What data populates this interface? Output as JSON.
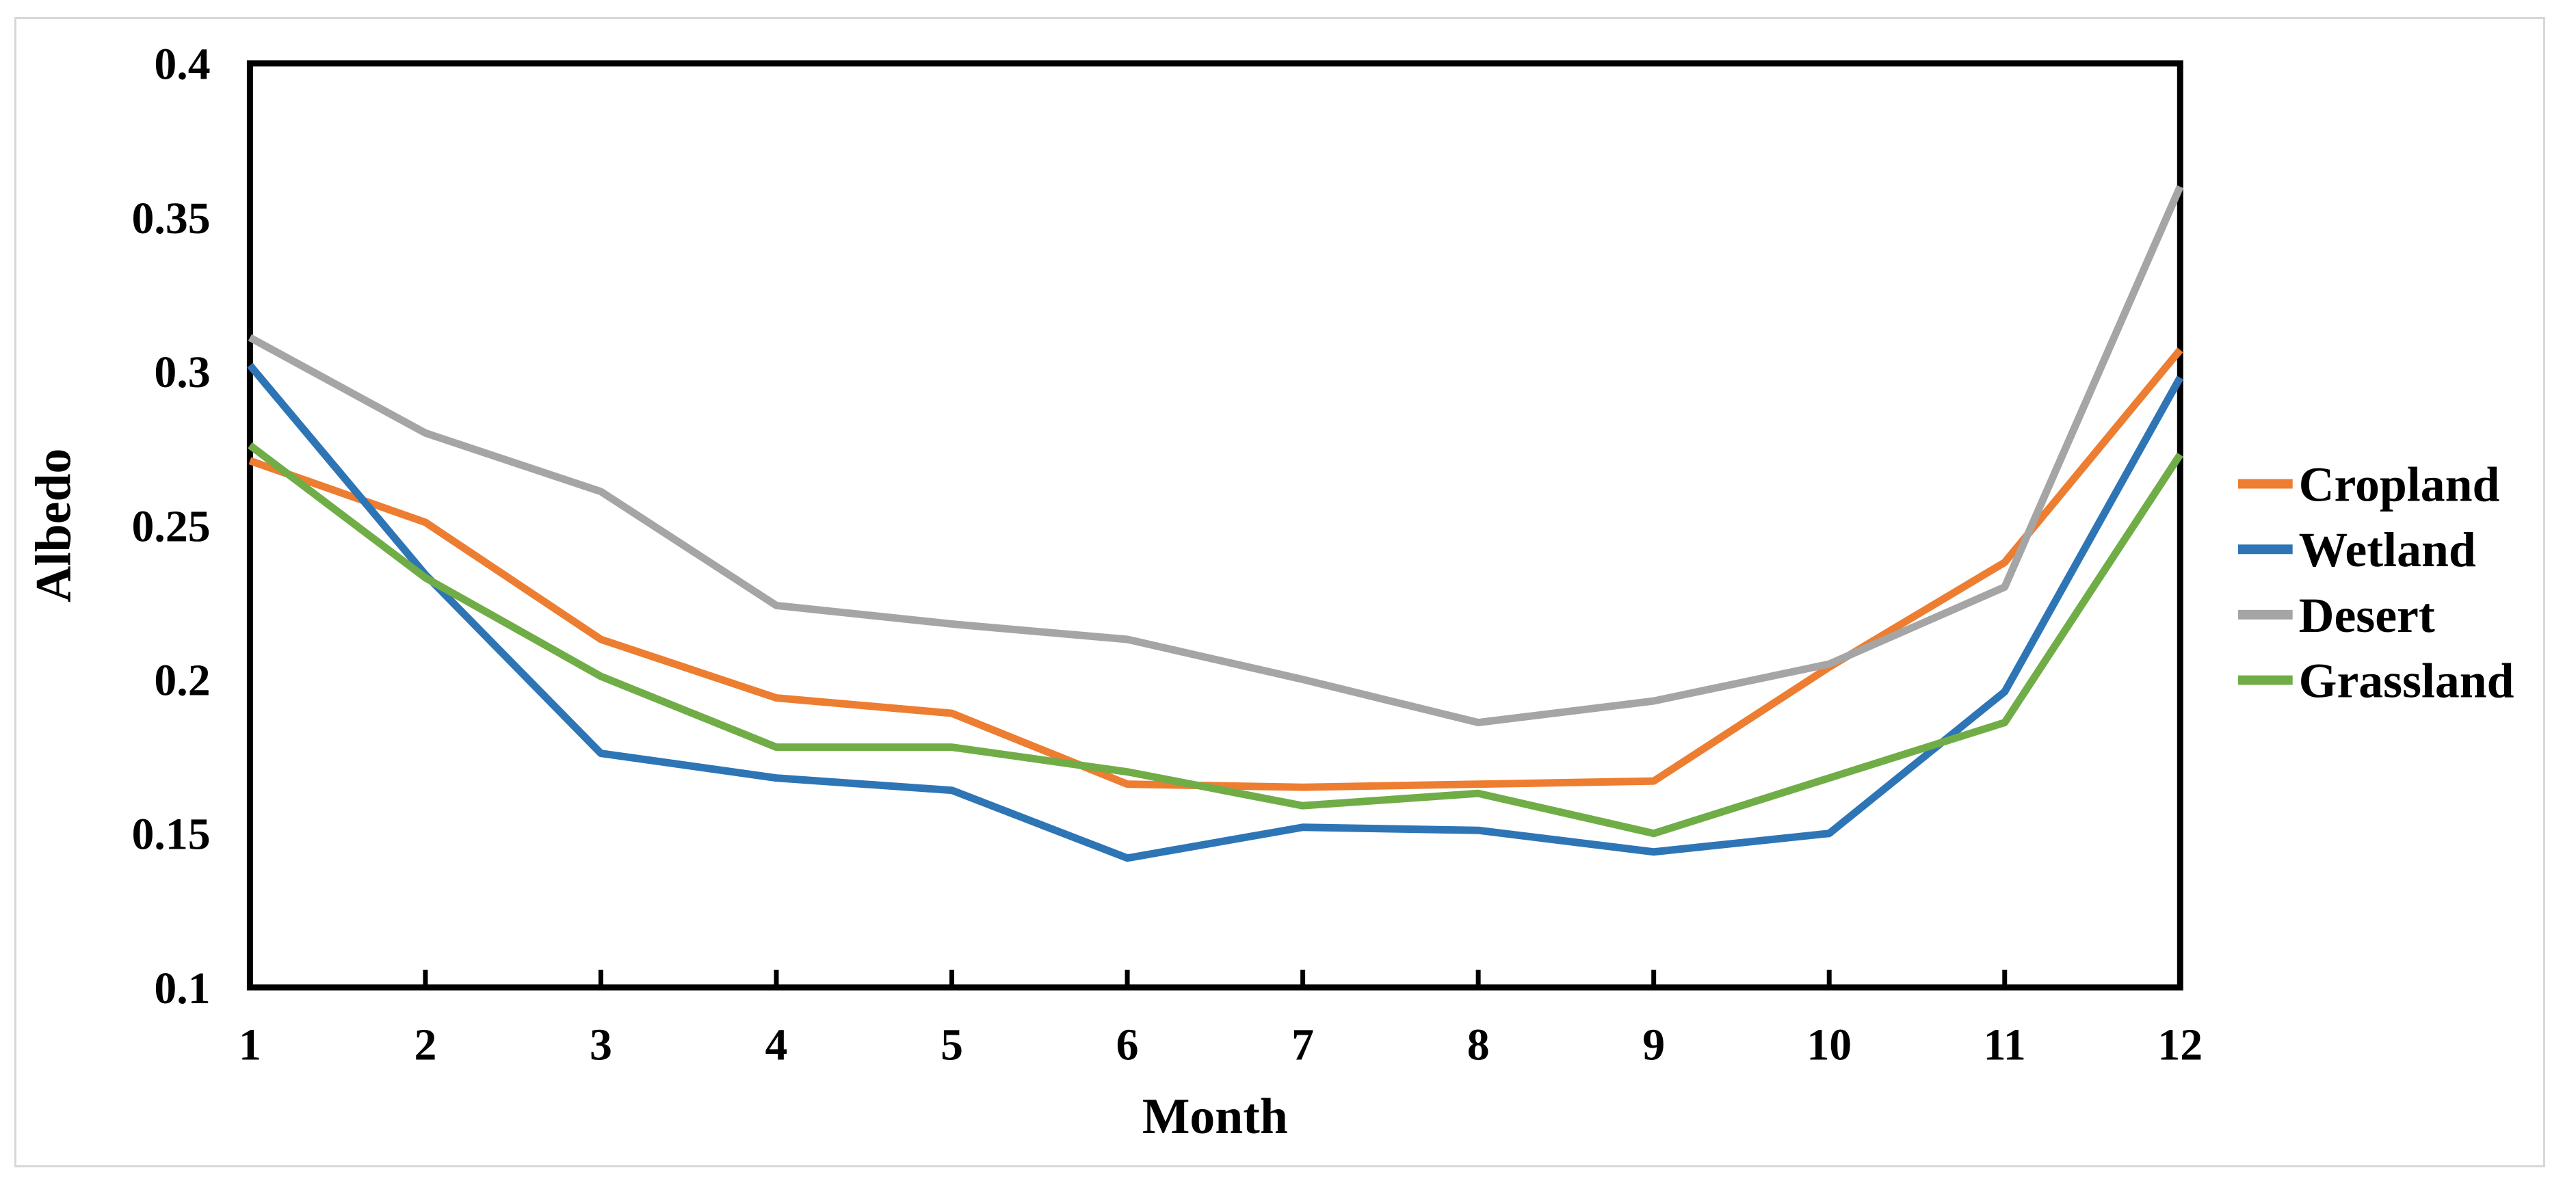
{
  "figure": {
    "background_color": "#ffffff",
    "border_color": "#d7d7d7",
    "axis_color": "#000000",
    "text_color": "#000000"
  },
  "chart_data": {
    "type": "line",
    "title": "",
    "xlabel": "Month",
    "ylabel": "Albedo",
    "xlim": [
      1,
      12
    ],
    "ylim": [
      0.1,
      0.4
    ],
    "grid": false,
    "legend_position": "right",
    "x": [
      1,
      2,
      3,
      4,
      5,
      6,
      7,
      8,
      9,
      10,
      11,
      12
    ],
    "x_tick_labels": [
      "1",
      "2",
      "3",
      "4",
      "5",
      "6",
      "7",
      "8",
      "9",
      "10",
      "11",
      "12"
    ],
    "y_tick_values": [
      0.4,
      0.35,
      0.3,
      0.25,
      0.2,
      0.15,
      0.1
    ],
    "y_tick_labels": [
      "0.4",
      "0.35",
      "0.3",
      "0.25",
      "0.2",
      "0.15",
      "0.1"
    ],
    "series": [
      {
        "name": "Cropland",
        "color": "#ED7D31",
        "values": [
          0.271,
          0.251,
          0.213,
          0.194,
          0.189,
          0.166,
          0.165,
          0.166,
          0.167,
          0.204,
          0.238,
          0.307
        ]
      },
      {
        "name": "Wetland",
        "color": "#2E75B6",
        "values": [
          0.302,
          0.234,
          0.176,
          0.168,
          0.164,
          0.142,
          0.152,
          0.151,
          0.144,
          0.15,
          0.196,
          0.298
        ]
      },
      {
        "name": "Desert",
        "color": "#A5A5A5",
        "values": [
          0.311,
          0.28,
          0.261,
          0.224,
          0.218,
          0.213,
          0.2,
          0.186,
          0.193,
          0.205,
          0.23,
          0.36
        ]
      },
      {
        "name": "Grassland",
        "color": "#70AD47",
        "values": [
          0.276,
          0.233,
          0.201,
          0.178,
          0.178,
          0.17,
          0.159,
          0.163,
          0.15,
          0.168,
          0.186,
          0.273
        ]
      }
    ]
  }
}
